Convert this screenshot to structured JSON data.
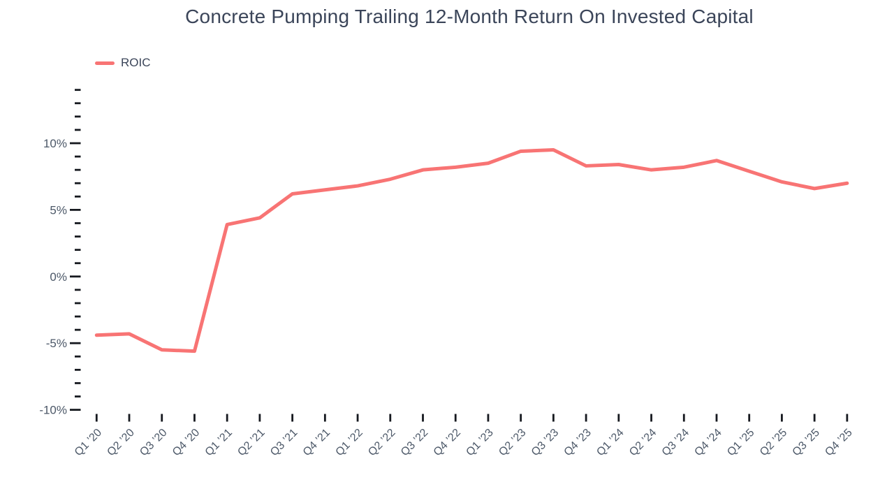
{
  "title": "Concrete Pumping Trailing 12-Month Return On Invested Capital",
  "legend": [
    {
      "label": "ROIC",
      "color": "#f87474"
    }
  ],
  "chart_data": {
    "type": "line",
    "title": "Concrete Pumping Trailing 12-Month Return On Invested Capital",
    "categories": [
      "Q1 ’20",
      "Q2 ’20",
      "Q3 ’20",
      "Q4 ’20",
      "Q1 ’21",
      "Q2 ’21",
      "Q3 ’21",
      "Q4 ’21",
      "Q1 ’22",
      "Q2 ’22",
      "Q3 ’22",
      "Q4 ’22",
      "Q1 ’23",
      "Q2 ’23",
      "Q3 ’23",
      "Q4 ’23",
      "Q1 ’24",
      "Q2 ’24",
      "Q3 ’24",
      "Q4 ’24",
      "Q1 ’25",
      "Q2 ’25",
      "Q3 ’25",
      "Q4 ’25"
    ],
    "series": [
      {
        "name": "ROIC",
        "unit": "%",
        "values": [
          -4.4,
          -4.3,
          -5.5,
          -5.6,
          3.9,
          4.4,
          6.2,
          6.5,
          6.8,
          7.3,
          8.0,
          8.2,
          8.5,
          9.4,
          9.5,
          8.3,
          8.4,
          8.0,
          8.2,
          8.7,
          7.9,
          7.1,
          6.6,
          7.0
        ]
      }
    ],
    "y_axis": {
      "range": [
        -10,
        14
      ],
      "minor_tick_step": 1,
      "major_ticks": [
        {
          "value": 10,
          "label": "10%"
        },
        {
          "value": 5,
          "label": "5%"
        },
        {
          "value": 0,
          "label": "0%"
        },
        {
          "value": -5,
          "label": "-5%"
        },
        {
          "value": -10,
          "label": "-10%"
        }
      ]
    },
    "x_axis": {
      "label_rotation_deg": -45
    },
    "grid": false,
    "legend_position": "top-left",
    "colors": {
      "line": "#f87474",
      "tick": "#16191f",
      "axis_label": "#4c5868",
      "title": "#3b4559",
      "background": "#ffffff"
    }
  }
}
